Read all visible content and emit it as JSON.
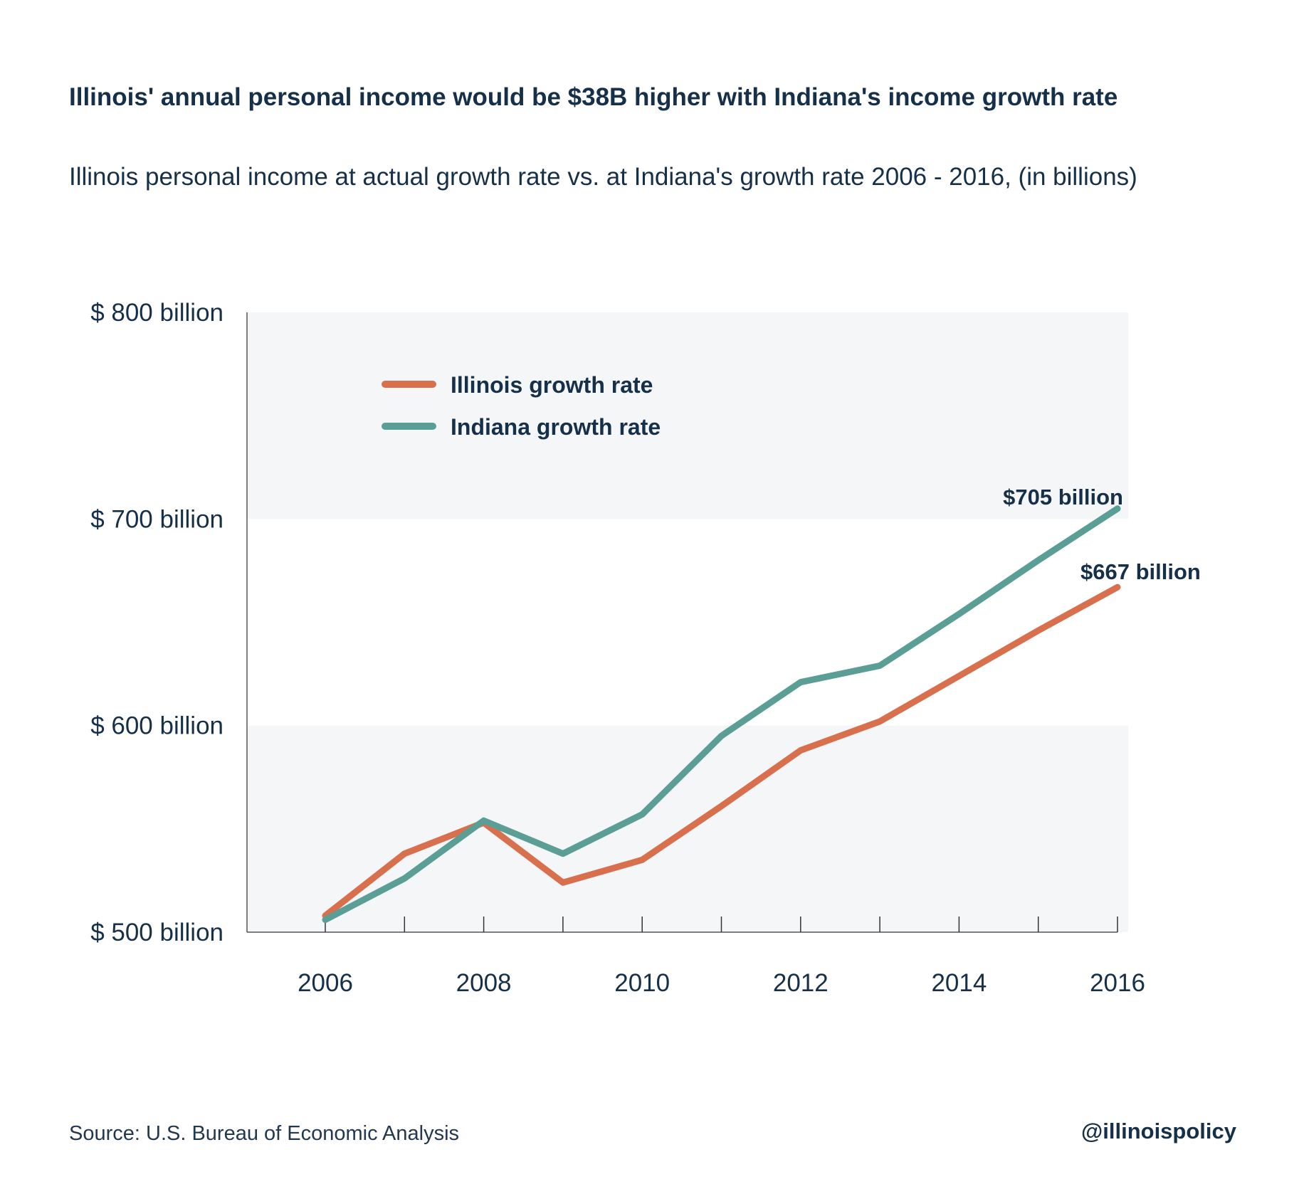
{
  "title": "Illinois' annual personal income would be $38B higher with Indiana's income growth rate",
  "subtitle": "Illinois personal income at actual growth rate vs. at Indiana's growth rate 2006 - 2016, (in billions)",
  "source": "Source:  U.S. Bureau of Economic Analysis",
  "handle": "@illinoispolicy",
  "colors": {
    "illinois": "#d8704e",
    "indiana": "#5a9e96",
    "band": "#f4f6f8",
    "text": "#16304a",
    "axis": "#555555"
  },
  "chart_data": {
    "type": "line",
    "x": [
      2006,
      2007,
      2008,
      2009,
      2010,
      2011,
      2012,
      2013,
      2014,
      2015,
      2016
    ],
    "x_tick_labels": [
      "2006",
      "2008",
      "2010",
      "2012",
      "2014",
      "2016"
    ],
    "y_tick_labels": [
      "$ 500 billion",
      "$ 600 billion",
      "$ 700 billion",
      "$ 800 billion"
    ],
    "y_ticks": [
      500,
      600,
      700,
      800
    ],
    "ylim": [
      500,
      800
    ],
    "xlim": [
      2005,
      2016.1
    ],
    "legend_position": "top-left",
    "series": [
      {
        "name": "Illinois growth rate",
        "color": "#d8704e",
        "values": [
          508,
          538,
          553,
          524,
          535,
          561,
          588,
          602,
          624,
          646,
          667
        ]
      },
      {
        "name": "Indiana growth rate",
        "color": "#5a9e96",
        "values": [
          506,
          526,
          554,
          538,
          557,
          595,
          621,
          629,
          654,
          680,
          705
        ]
      }
    ],
    "annotations": [
      {
        "text": "$705 billion",
        "series": "Indiana growth rate",
        "x": 2016,
        "y": 705
      },
      {
        "text": "$667 billion",
        "series": "Illinois growth rate",
        "x": 2016,
        "y": 667
      }
    ]
  }
}
